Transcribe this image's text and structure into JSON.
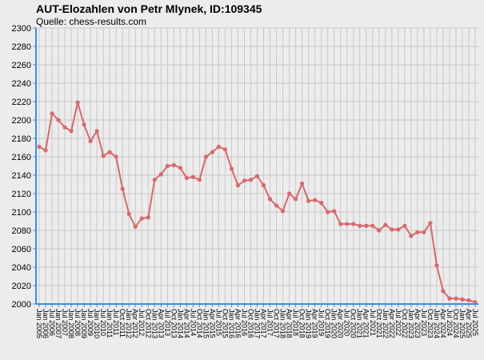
{
  "chart_data": {
    "type": "line",
    "title": "AUT-Elozahlen von Petr Mlynek, ID:109345",
    "subtitle": "Quelle: chess-results.com",
    "categories": [
      "Jan 2005",
      "Jan 2006",
      "Jul 2006",
      "Jan 2007",
      "Jul 2007",
      "Jan 2008",
      "Jul 2008",
      "Jan 2009",
      "Jul 2009",
      "Jan 2010",
      "Jul 2010",
      "Jan 2011",
      "Jul 2011",
      "Oct 2011",
      "Jan 2012",
      "Apr 2012",
      "Jul 2012",
      "Oct 2012",
      "Jan 2013",
      "Apr 2013",
      "Jul 2013",
      "Oct 2013",
      "Jan 2014",
      "Apr 2014",
      "Jul 2014",
      "Oct 2014",
      "Jan 2015",
      "Apr 2015",
      "Jul 2015",
      "Oct 2015",
      "Jan 2016",
      "Apr 2016",
      "Jul 2016",
      "Oct 2016",
      "Jan 2017",
      "Apr 2017",
      "Jul 2017",
      "Oct 2017",
      "Jan 2018",
      "Apr 2018",
      "Jul 2018",
      "Oct 2018",
      "Jan 2019",
      "Apr 2019",
      "Jul 2019",
      "Oct 2019",
      "Jan 2020",
      "Apr 2020",
      "Jul 2020",
      "Oct 2020",
      "Jan 2021",
      "Apr 2021",
      "Jul 2021",
      "Oct 2021",
      "Jan 2022",
      "Apr 2022",
      "Jul 2022",
      "Oct 2022",
      "Jan 2023",
      "Apr 2023",
      "Jul 2023",
      "Oct 2023",
      "Jan 2024",
      "Apr 2024",
      "Jul 2024",
      "Oct 2024",
      "Jan 2025",
      "Apr 2025",
      "Jul 2025"
    ],
    "series": [
      {
        "color": "#d9686a",
        "values": [
          2171,
          2167,
          2207,
          2200,
          2192,
          2188,
          2219,
          2195,
          2177,
          2188,
          2161,
          2165,
          2160,
          2125,
          2098,
          2084,
          2093,
          2094,
          2135,
          2141,
          2150,
          2151,
          2148,
          2137,
          2138,
          2135,
          2160,
          2165,
          2171,
          2168,
          2147,
          2129,
          2134,
          2135,
          2139,
          2129,
          2114,
          2107,
          2101,
          2120,
          2114,
          2131,
          2112,
          2113,
          2110,
          2100,
          2101,
          2087,
          2087,
          2087,
          2085,
          2085,
          2085,
          2080,
          2086,
          2081,
          2081,
          2085,
          2074,
          2078,
          2078,
          2088,
          2042,
          2014,
          2006,
          2006,
          2005,
          2004,
          2002
        ]
      }
    ],
    "ylim": [
      2000,
      2300
    ],
    "yticks": [
      2000,
      2020,
      2040,
      2060,
      2080,
      2100,
      2120,
      2140,
      2160,
      2180,
      2200,
      2220,
      2240,
      2260,
      2280,
      2300
    ],
    "grid": true
  }
}
